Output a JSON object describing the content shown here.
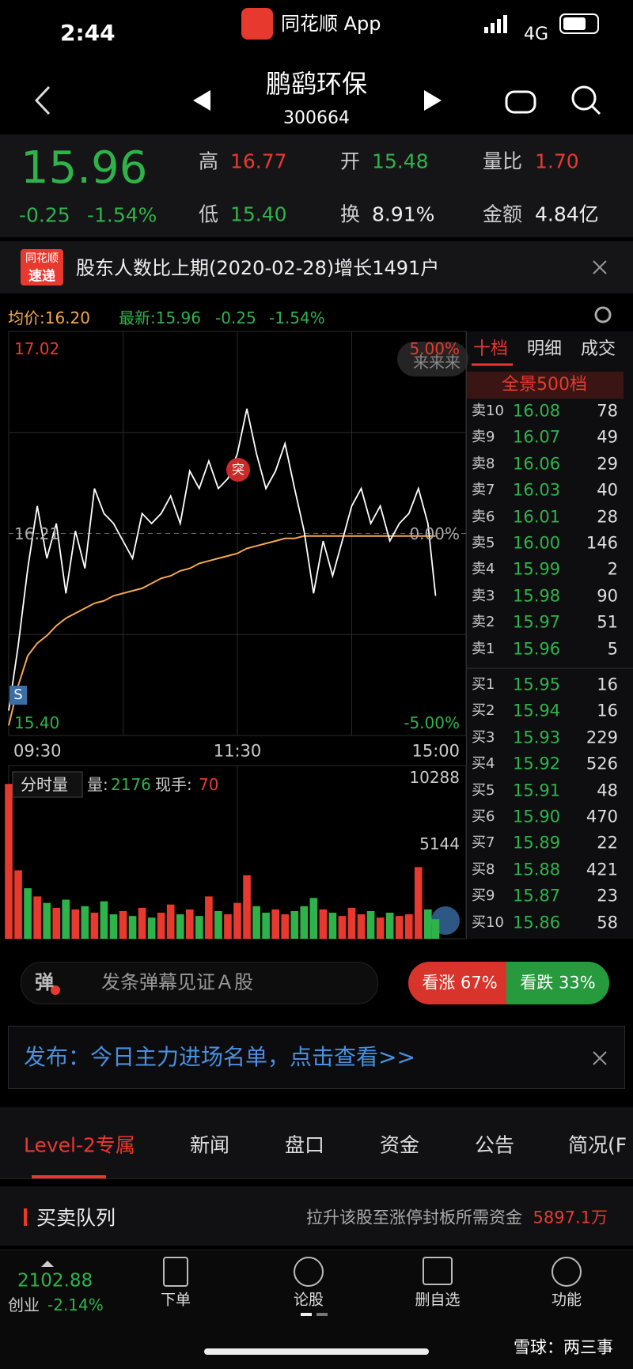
{
  "status": {
    "time": "2:44",
    "app": "同花顺 App",
    "network": "4G"
  },
  "header": {
    "name": "鹏鹞环保",
    "code": "300664"
  },
  "quote": {
    "price": "15.96",
    "change": "-0.25",
    "pct": "-1.54%",
    "stats": [
      {
        "label": "高",
        "value": "16.77"
      },
      {
        "label": "开",
        "value": "15.48"
      },
      {
        "label": "量比",
        "value": "1.70"
      },
      {
        "label": "低",
        "value": "15.40"
      },
      {
        "label": "换",
        "value": "8.91%"
      },
      {
        "label": "金额",
        "value": "4.84亿"
      }
    ]
  },
  "news": {
    "badge_top": "同花顺",
    "badge_bottom": "速递",
    "text": "股东人数比上期(2020-02-28)增长1491户"
  },
  "chart": {
    "avg_label": "均价:16.20",
    "latest_label": "最新:15.96",
    "change": "-0.25",
    "pct": "-1.54%",
    "bubble": "来来来",
    "break_mark": "突",
    "s_mark": "S",
    "ylim": [
      15.4,
      17.02
    ],
    "yticks": [
      17.02,
      16.21,
      {
        "value": 15.4,
        "label": "15.40"
      }
    ],
    "pct_labels": [
      "5.00%",
      "0.00%",
      "-5.00%"
    ],
    "xlim": [
      0,
      240
    ],
    "xticks": [
      {
        "value": 0,
        "label": "09:30"
      },
      {
        "value": 120,
        "label": "11:30"
      },
      {
        "value": 240,
        "label": "15:00"
      }
    ],
    "t": [
      0,
      5,
      10,
      15,
      20,
      25,
      30,
      35,
      40,
      45,
      50,
      55,
      60,
      65,
      70,
      75,
      80,
      85,
      90,
      95,
      100,
      105,
      110,
      115,
      120,
      125,
      130,
      135,
      140,
      145,
      150,
      155,
      160,
      165,
      170,
      175,
      180,
      185,
      190,
      195,
      200,
      205,
      210,
      215,
      220,
      224
    ],
    "price": [
      15.5,
      15.76,
      16.07,
      16.32,
      16.11,
      16.25,
      15.97,
      16.22,
      16.07,
      16.39,
      16.29,
      16.25,
      16.18,
      16.11,
      16.29,
      16.25,
      16.29,
      16.36,
      16.25,
      16.46,
      16.39,
      16.5,
      16.39,
      16.43,
      16.53,
      16.71,
      16.53,
      16.39,
      16.46,
      16.57,
      16.39,
      16.22,
      15.97,
      16.18,
      16.04,
      16.18,
      16.32,
      16.39,
      16.25,
      16.32,
      16.18,
      16.25,
      16.29,
      16.39,
      16.25,
      15.96
    ],
    "avg": [
      15.44,
      15.6,
      15.72,
      15.77,
      15.8,
      15.84,
      15.87,
      15.89,
      15.91,
      15.93,
      15.94,
      15.96,
      15.97,
      15.98,
      15.99,
      16.01,
      16.03,
      16.04,
      16.06,
      16.07,
      16.09,
      16.1,
      16.11,
      16.12,
      16.13,
      16.15,
      16.16,
      16.17,
      16.18,
      16.19,
      16.19,
      16.2,
      16.2,
      16.2,
      16.2,
      16.2,
      16.2,
      16.2,
      16.2,
      16.2,
      16.2,
      16.2,
      16.2,
      16.2,
      16.2,
      16.2
    ],
    "price_color": "#ffffff",
    "avg_color": "#f5a94c",
    "volume_title": "分时量",
    "volume_label": "量:",
    "volume_now": "2176",
    "hand_label": "现手:",
    "hand_now": "70",
    "vlim": [
      0,
      10288
    ],
    "vticks": [
      10288,
      5144
    ],
    "volume": [
      9500,
      4200,
      3100,
      2600,
      2200,
      1900,
      2400,
      1800,
      2000,
      1600,
      2300,
      1500,
      1700,
      1400,
      1900,
      1300,
      1600,
      2100,
      1500,
      1800,
      1400,
      2600,
      1700,
      1500,
      2200,
      3900,
      2000,
      1600,
      1800,
      1500,
      1700,
      2000,
      2500,
      1800,
      1600,
      1400,
      1900,
      1500,
      1700,
      1300,
      1600,
      1400,
      1500,
      4400,
      1800,
      1200
    ],
    "volume_colors": [
      "#e8392f",
      "#e8392f",
      "#2eb34a",
      "#e8392f",
      "#2eb34a",
      "#e8392f",
      "#2eb34a",
      "#e8392f",
      "#2eb34a",
      "#e8392f",
      "#2eb34a",
      "#2eb34a",
      "#e8392f",
      "#2eb34a",
      "#e8392f",
      "#2eb34a",
      "#e8392f",
      "#e8392f",
      "#2eb34a",
      "#e8392f",
      "#2eb34a",
      "#e8392f",
      "#2eb34a",
      "#e8392f",
      "#e8392f",
      "#e8392f",
      "#2eb34a",
      "#2eb34a",
      "#e8392f",
      "#e8392f",
      "#2eb34a",
      "#2eb34a",
      "#2eb34a",
      "#e8392f",
      "#2eb34a",
      "#e8392f",
      "#e8392f",
      "#e8392f",
      "#2eb34a",
      "#e8392f",
      "#2eb34a",
      "#e8392f",
      "#e8392f",
      "#e8392f",
      "#2eb34a",
      "#2eb34a"
    ]
  },
  "orderbook": {
    "tabs": [
      "十档",
      "明细",
      "成交"
    ],
    "panorama": "全景500档",
    "asks": [
      {
        "label": "卖10",
        "price": "16.08",
        "vol": "78"
      },
      {
        "label": "卖9",
        "price": "16.07",
        "vol": "49"
      },
      {
        "label": "卖8",
        "price": "16.06",
        "vol": "29"
      },
      {
        "label": "卖7",
        "price": "16.03",
        "vol": "40"
      },
      {
        "label": "卖6",
        "price": "16.01",
        "vol": "28"
      },
      {
        "label": "卖5",
        "price": "16.00",
        "vol": "146"
      },
      {
        "label": "卖4",
        "price": "15.99",
        "vol": "2"
      },
      {
        "label": "卖3",
        "price": "15.98",
        "vol": "90"
      },
      {
        "label": "卖2",
        "price": "15.97",
        "vol": "51"
      },
      {
        "label": "卖1",
        "price": "15.96",
        "vol": "5"
      }
    ],
    "bids": [
      {
        "label": "买1",
        "price": "15.95",
        "vol": "16"
      },
      {
        "label": "买2",
        "price": "15.94",
        "vol": "16"
      },
      {
        "label": "买3",
        "price": "15.93",
        "vol": "229"
      },
      {
        "label": "买4",
        "price": "15.92",
        "vol": "526"
      },
      {
        "label": "买5",
        "price": "15.91",
        "vol": "48"
      },
      {
        "label": "买6",
        "price": "15.90",
        "vol": "470"
      },
      {
        "label": "买7",
        "price": "15.89",
        "vol": "22"
      },
      {
        "label": "买8",
        "price": "15.88",
        "vol": "421"
      },
      {
        "label": "买9",
        "price": "15.87",
        "vol": "23"
      },
      {
        "label": "买10",
        "price": "15.86",
        "vol": "58"
      }
    ]
  },
  "danmaku": {
    "icon": "弹",
    "placeholder": "发条弹幕见证Ａ股",
    "up": "看涨 67%",
    "down": "看跌 33%"
  },
  "promo": {
    "text": "发布：今日主力进场名单，点击查看>>"
  },
  "tabs": [
    "Level-2专属",
    "新闻",
    "盘口",
    "资金",
    "公告",
    "简况(F"
  ],
  "section": {
    "title": "买卖队列",
    "desc": "拉升该股至涨停封板所需资金",
    "amount": "5897.1万"
  },
  "bottom_nav": {
    "index_value": "2102.88",
    "index_name": "创业",
    "index_pct": "-2.14%",
    "items": [
      "下单",
      "论股",
      "删自选",
      "功能"
    ]
  },
  "watermark": "雪球：两三事"
}
